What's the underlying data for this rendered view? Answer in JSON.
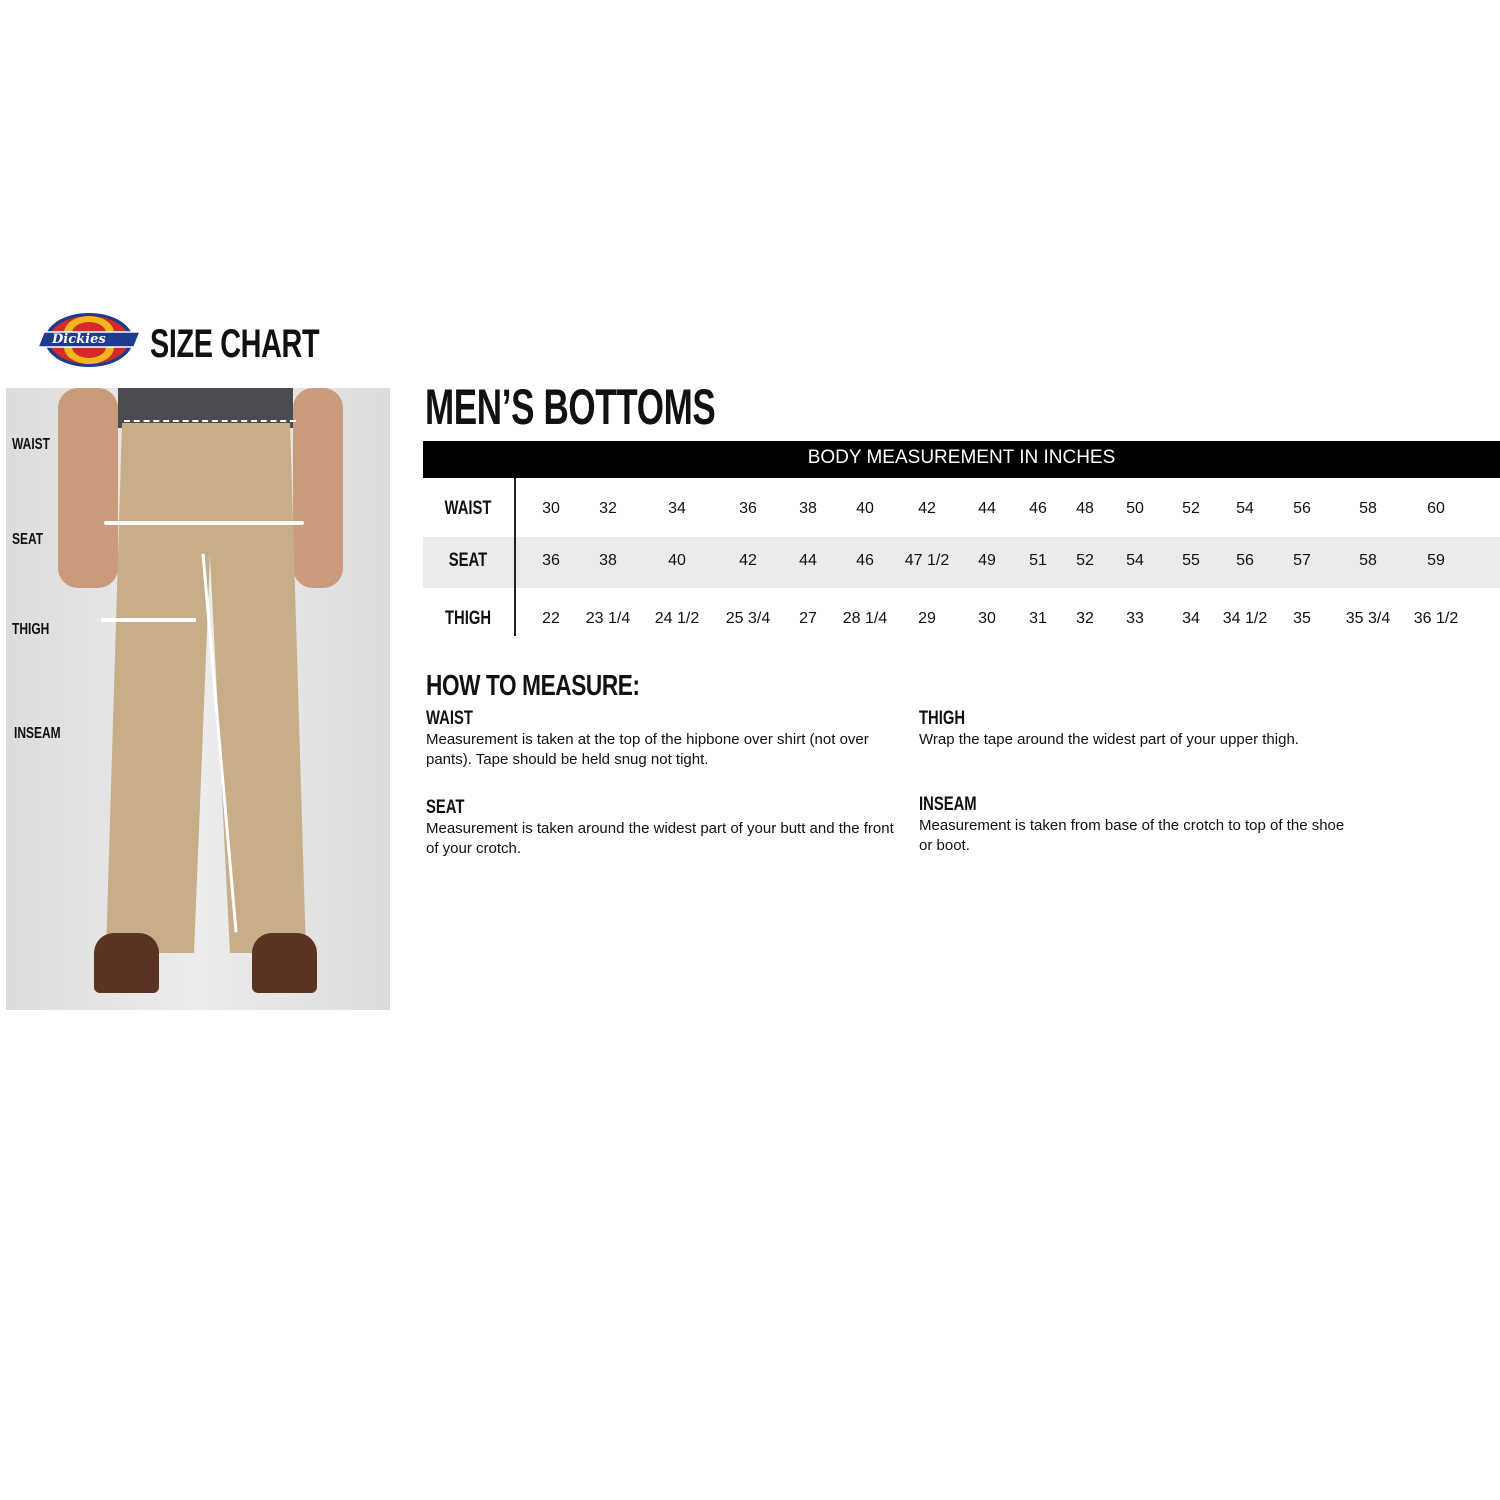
{
  "brand": {
    "logo_text": "Dickies",
    "title": "SIZE CHART",
    "colors": {
      "blue": "#1d3b8f",
      "red": "#d62a2a",
      "gold": "#f2b71e"
    }
  },
  "photo": {
    "labels": [
      "WAIST",
      "SEAT",
      "THIGH",
      "INSEAM"
    ]
  },
  "section_title": "MEN’S BOTTOMS",
  "table": {
    "header": "BODY MEASUREMENT IN INCHES",
    "rows": [
      {
        "label": "WAIST",
        "values": [
          "30",
          "32",
          "34",
          "36",
          "38",
          "40",
          "42",
          "44",
          "46",
          "48",
          "50",
          "52",
          "54",
          "56",
          "58",
          "60"
        ]
      },
      {
        "label": "SEAT",
        "values": [
          "36",
          "38",
          "40",
          "42",
          "44",
          "46",
          "47 1/2",
          "49",
          "51",
          "52",
          "54",
          "55",
          "56",
          "57",
          "58",
          "59"
        ]
      },
      {
        "label": "THIGH",
        "values": [
          "22",
          "23 1/4",
          "24 1/2",
          "25 3/4",
          "27",
          "28 1/4",
          "29",
          "30",
          "31",
          "32",
          "33",
          "34",
          "34 1/2",
          "35",
          "35 3/4",
          "36 1/2"
        ]
      }
    ]
  },
  "how_to": {
    "title": "HOW TO MEASURE:",
    "items": [
      {
        "heading": "WAIST",
        "text": "Measurement is taken at the top of the hipbone over shirt (not over pants). Tape should be held snug not tight."
      },
      {
        "heading": "SEAT",
        "text": "Measurement is taken around the widest part of your butt and the front of your crotch."
      },
      {
        "heading": "THIGH",
        "text": "Wrap the tape around the widest part of your upper thigh."
      },
      {
        "heading": "INSEAM",
        "text": "Measurement is taken from base of the crotch to top of the shoe or boot."
      }
    ]
  }
}
